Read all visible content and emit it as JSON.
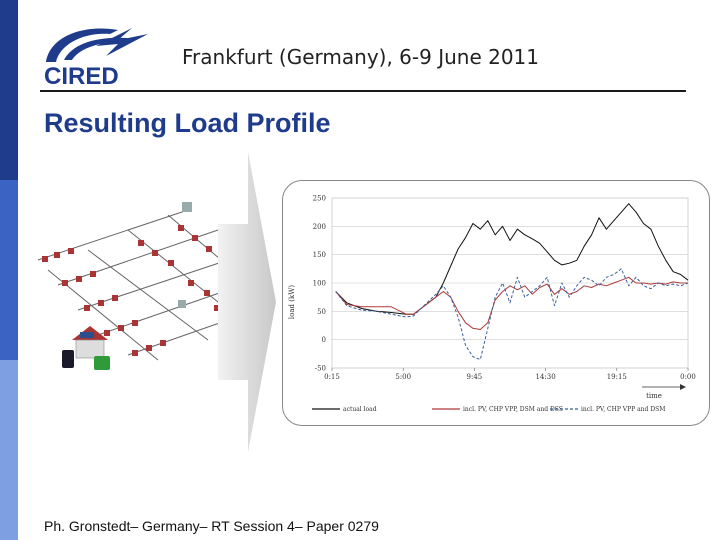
{
  "header": {
    "event": "Frankfurt (Germany), 6-9 June 2011",
    "logo_text": "CIRED"
  },
  "slide": {
    "title": "Resulting Load Profile",
    "footer": "Ph. Gronstedt– Germany– RT Session 4– Paper 0279"
  },
  "colors": {
    "sidebar_dark": "#1f3c8c",
    "sidebar_mid": "#3a63c4",
    "sidebar_light": "#7f9fe3",
    "title": "#1f3c8c"
  },
  "illustration": {
    "icon": "distribution-network-icon",
    "arrow": "right-arrow-icon"
  },
  "chart_data": {
    "type": "line",
    "ylabel": "load (kW)",
    "xlabel": "time",
    "x_ticks": [
      "0:15",
      "5:00",
      "9:45",
      "14:30",
      "19:15",
      "0:00"
    ],
    "y_ticks": [
      "250",
      "200",
      "150",
      "100",
      "50",
      "0",
      "-50"
    ],
    "ylim": [
      -50,
      250
    ],
    "xlim": [
      0,
      24
    ],
    "grid": true,
    "legend_position": "bottom",
    "series": [
      {
        "name": "actual load",
        "color": "#111111",
        "dash": "",
        "x": [
          0.25,
          1,
          2,
          3,
          4,
          5,
          5.5,
          6,
          7,
          7.5,
          8,
          8.5,
          9,
          9.5,
          10,
          10.5,
          11,
          11.5,
          12,
          12.5,
          13,
          13.5,
          14,
          14.5,
          15,
          15.5,
          16,
          16.5,
          17,
          17.5,
          18,
          18.5,
          19,
          19.5,
          20,
          20.5,
          21,
          21.5,
          22,
          22.5,
          23,
          23.5,
          24
        ],
        "y": [
          85,
          65,
          55,
          50,
          48,
          45,
          45,
          55,
          75,
          100,
          130,
          160,
          180,
          205,
          195,
          210,
          185,
          200,
          175,
          195,
          185,
          178,
          170,
          155,
          140,
          132,
          135,
          140,
          165,
          185,
          215,
          195,
          210,
          225,
          240,
          225,
          205,
          195,
          165,
          140,
          120,
          115,
          105
        ]
      },
      {
        "name": "incl. PV, CHP VPP, DSM and DSS",
        "color": "#b03a3a",
        "dash": "",
        "x": [
          0.25,
          1,
          2,
          3,
          4,
          5,
          5.5,
          6,
          7,
          7.5,
          8,
          8.5,
          9,
          9.5,
          10,
          10.5,
          11,
          11.5,
          12,
          12.5,
          13,
          13.5,
          14,
          14.5,
          15,
          15.5,
          16,
          16.5,
          17,
          17.5,
          18,
          18.5,
          19,
          19.5,
          20,
          20.5,
          21,
          21.5,
          22,
          22.5,
          23,
          23.5,
          24
        ],
        "y": [
          85,
          62,
          58,
          58,
          58,
          45,
          45,
          55,
          75,
          85,
          75,
          50,
          30,
          20,
          18,
          30,
          70,
          85,
          95,
          88,
          95,
          80,
          92,
          98,
          80,
          90,
          80,
          85,
          95,
          92,
          98,
          95,
          100,
          105,
          110,
          100,
          100,
          98,
          100,
          98,
          102,
          100,
          100
        ]
      },
      {
        "name": "incl. PV, CHP VPP and DSM",
        "color": "#3a5f9a",
        "dash": "3,2",
        "x": [
          0.25,
          1,
          2,
          3,
          4,
          5,
          5.5,
          6,
          7,
          7.5,
          8,
          8.5,
          9,
          9.5,
          10,
          10.5,
          11,
          11.5,
          12,
          12.5,
          13,
          13.5,
          14,
          14.5,
          15,
          15.5,
          16,
          16.5,
          17,
          17.5,
          18,
          18.5,
          19,
          19.5,
          20,
          20.5,
          21,
          21.5,
          22,
          22.5,
          23,
          23.5,
          24
        ],
        "y": [
          85,
          60,
          52,
          50,
          45,
          40,
          42,
          55,
          80,
          95,
          75,
          40,
          -10,
          -30,
          -35,
          20,
          75,
          100,
          65,
          110,
          75,
          85,
          95,
          110,
          60,
          100,
          75,
          95,
          110,
          105,
          95,
          110,
          115,
          125,
          95,
          110,
          95,
          90,
          100,
          95,
          98,
          95,
          100
        ]
      }
    ]
  }
}
